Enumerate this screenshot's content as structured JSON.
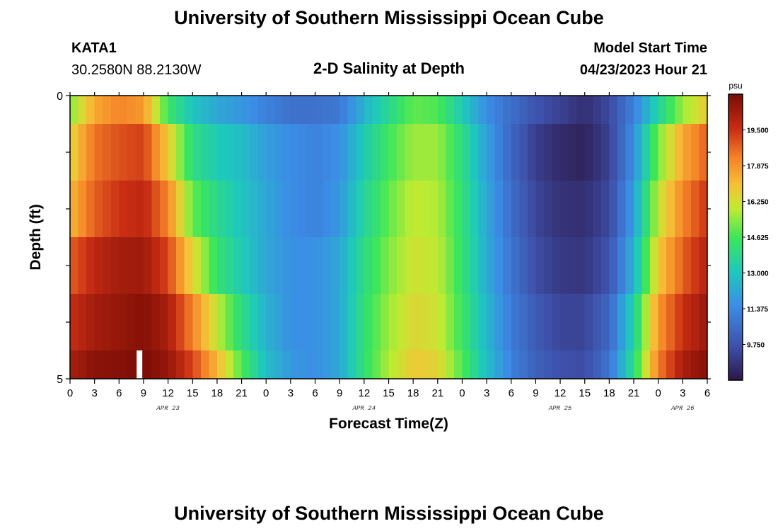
{
  "header": {
    "title": "University of Southern Mississippi Ocean Cube",
    "station_id": "KATA1",
    "station_coords": "30.2580N  88.2130W",
    "plot_title": "2-D Salinity at Depth",
    "model_start_label": "Model Start Time",
    "model_start_value": "04/23/2023 Hour 21"
  },
  "footer": {
    "title": "University of Southern Mississippi Ocean Cube"
  },
  "chart_data": {
    "type": "heatmap",
    "title": "2-D Salinity at Depth",
    "xlabel": "Forecast Time(Z)",
    "ylabel": "Depth (ft)",
    "x_tick_labels": [
      "0",
      "3",
      "6",
      "9",
      "12",
      "15",
      "18",
      "21",
      "0",
      "3",
      "6",
      "9",
      "12",
      "15",
      "18",
      "21",
      "0",
      "3",
      "6",
      "9",
      "12",
      "15",
      "18",
      "21",
      "0",
      "3",
      "6"
    ],
    "date_labels": [
      {
        "label": "APR 23",
        "hour": 12
      },
      {
        "label": "APR 24",
        "hour": 36
      },
      {
        "label": "APR 25",
        "hour": 60
      },
      {
        "label": "APR 26",
        "hour": 75
      }
    ],
    "x_range_hours": [
      0,
      78
    ],
    "y_tick_labels": [
      "0",
      "5"
    ],
    "ylim": [
      0,
      5
    ],
    "depth_levels": [
      0,
      1,
      2,
      3,
      4,
      5
    ],
    "colorbar": {
      "unit": "psu",
      "min": 8.125,
      "max": 21.125,
      "tick_values": [
        9.75,
        11.375,
        13.0,
        14.625,
        16.25,
        17.875,
        19.5
      ],
      "tick_labels": [
        "9.750",
        "11.375",
        "13.000",
        "14.625",
        "16.250",
        "17.875",
        "19.500"
      ]
    },
    "salinity_keyframes_by_layer": [
      {
        "depth_range": "0-0.5",
        "hours": [
          0,
          3,
          6,
          9,
          12,
          15,
          18,
          21,
          24,
          27,
          30,
          33,
          36,
          39,
          42,
          45,
          48,
          51,
          54,
          57,
          60,
          63,
          66,
          69,
          72,
          75,
          78
        ],
        "values": [
          15.3,
          17.5,
          18.2,
          17.8,
          14.5,
          13.0,
          12.2,
          11.8,
          11.2,
          10.7,
          10.7,
          10.9,
          12.5,
          13.8,
          15.0,
          14.8,
          13.2,
          11.5,
          10.6,
          9.8,
          9.3,
          8.8,
          9.5,
          11.2,
          13.5,
          15.6,
          16.8
        ]
      },
      {
        "depth_range": "0.5-1.5",
        "hours": [
          0,
          3,
          6,
          9,
          12,
          15,
          18,
          21,
          24,
          27,
          30,
          33,
          36,
          39,
          42,
          45,
          48,
          51,
          54,
          57,
          60,
          63,
          66,
          69,
          72,
          75,
          78
        ],
        "values": [
          16.5,
          18.5,
          19.0,
          19.3,
          16.8,
          14.0,
          13.2,
          12.8,
          12.0,
          11.5,
          11.2,
          11.6,
          13.2,
          14.6,
          15.6,
          15.6,
          14.0,
          12.0,
          10.4,
          9.2,
          8.7,
          8.5,
          9.3,
          11.6,
          15.2,
          17.5,
          18.8
        ]
      },
      {
        "depth_range": "1.5-2.5",
        "hours": [
          0,
          3,
          6,
          9,
          12,
          15,
          18,
          21,
          24,
          27,
          30,
          33,
          36,
          39,
          42,
          45,
          48,
          51,
          54,
          57,
          60,
          63,
          66,
          69,
          72,
          75,
          78
        ],
        "values": [
          17.2,
          18.8,
          19.5,
          19.8,
          18.2,
          15.0,
          13.8,
          13.0,
          12.2,
          11.5,
          11.2,
          11.8,
          13.6,
          15.0,
          16.0,
          15.8,
          14.2,
          12.2,
          10.6,
          9.4,
          8.9,
          8.8,
          9.5,
          12.0,
          16.0,
          18.2,
          19.5
        ]
      },
      {
        "depth_range": "2.5-3.5",
        "hours": [
          0,
          3,
          6,
          9,
          12,
          15,
          18,
          21,
          24,
          27,
          30,
          33,
          36,
          39,
          42,
          45,
          48,
          51,
          54,
          57,
          60,
          63,
          66,
          69,
          72,
          75,
          78
        ],
        "values": [
          18.8,
          19.8,
          20.3,
          20.4,
          19.2,
          16.5,
          14.3,
          13.2,
          12.2,
          11.6,
          11.6,
          12.2,
          14.0,
          15.3,
          16.2,
          16.0,
          14.3,
          12.3,
          10.8,
          9.6,
          9.1,
          9.0,
          9.8,
          12.5,
          16.8,
          18.8,
          20.0
        ]
      },
      {
        "depth_range": "3.5-4.5",
        "hours": [
          0,
          3,
          6,
          9,
          12,
          15,
          18,
          21,
          24,
          27,
          30,
          33,
          36,
          39,
          42,
          45,
          48,
          51,
          54,
          57,
          60,
          63,
          66,
          69,
          72,
          75,
          78
        ],
        "values": [
          19.6,
          20.3,
          20.6,
          20.9,
          20.2,
          18.2,
          16.0,
          14.0,
          12.5,
          11.6,
          11.6,
          12.2,
          14.2,
          15.6,
          16.5,
          16.2,
          14.5,
          12.6,
          11.0,
          10.0,
          9.4,
          9.4,
          10.4,
          13.5,
          17.8,
          19.6,
          20.5
        ]
      },
      {
        "depth_range": "4.5-5",
        "hours": [
          0,
          3,
          6,
          9,
          12,
          15,
          18,
          21,
          24,
          27,
          30,
          33,
          36,
          39,
          42,
          45,
          48,
          51,
          54,
          57,
          60,
          63,
          66,
          69,
          72,
          75,
          78
        ],
        "values": [
          20.2,
          20.8,
          20.9,
          21.1,
          20.6,
          19.2,
          17.2,
          14.8,
          12.8,
          11.8,
          11.6,
          12.2,
          14.2,
          15.8,
          16.8,
          16.6,
          14.8,
          12.8,
          11.2,
          10.2,
          9.7,
          9.6,
          10.8,
          14.0,
          18.3,
          20.2,
          20.9
        ]
      }
    ],
    "missing_data": [
      {
        "hour": 8.5,
        "depth_range": "4.5-5"
      }
    ]
  }
}
